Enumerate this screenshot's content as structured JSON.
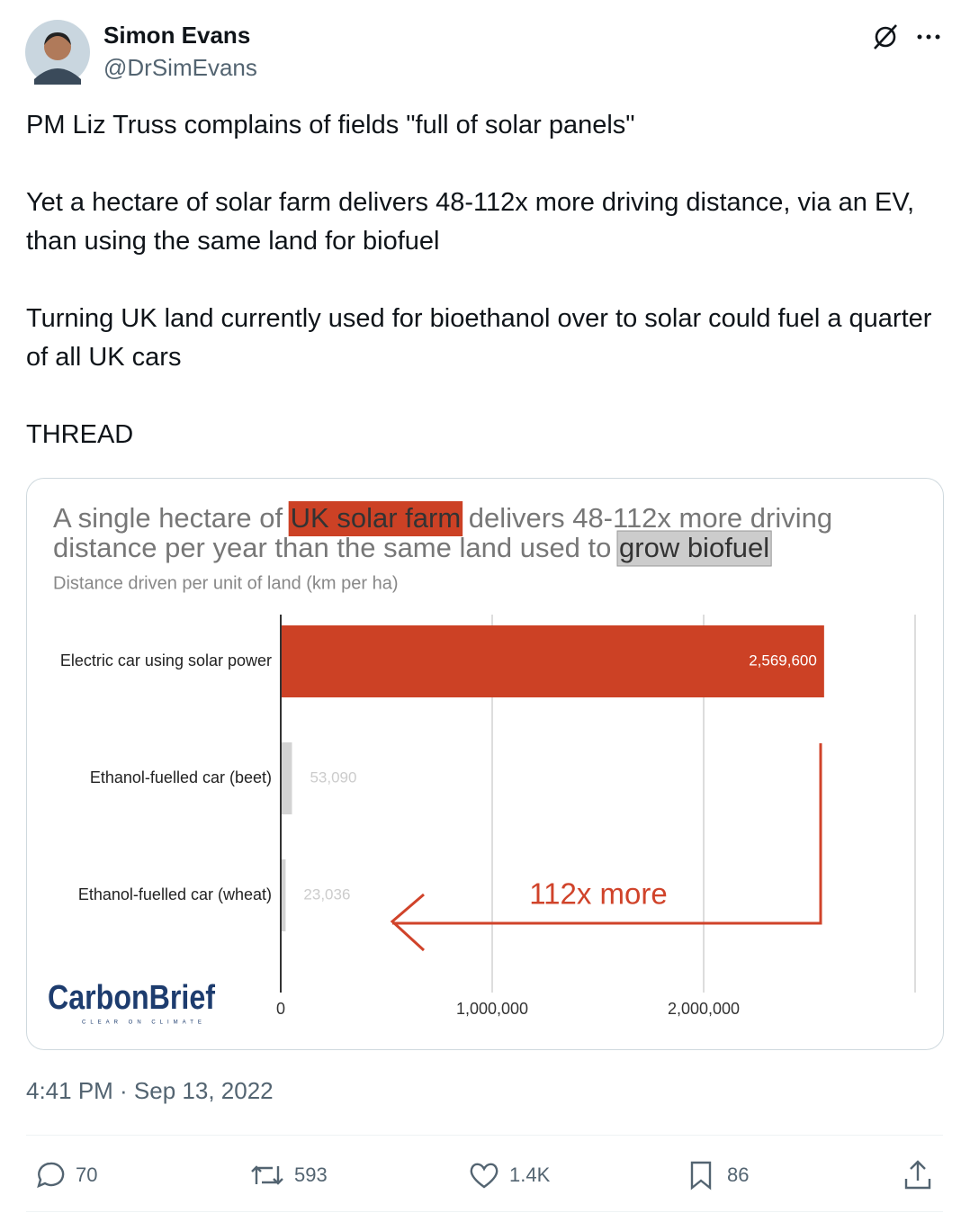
{
  "author": {
    "name": "Simon Evans",
    "handle": "@DrSimEvans"
  },
  "text": [
    "PM Liz Truss complains of fields \"full of solar panels\"",
    "Yet a hectare of solar farm delivers 48-112x more driving distance, via an EV, than using the same land for biofuel",
    "Turning UK land currently used for bioethanol over to solar could fuel a quarter of all UK cars",
    "THREAD"
  ],
  "chart_data": {
    "type": "bar",
    "orientation": "horizontal",
    "title": [
      [
        {
          "text": "A single hectare of "
        },
        {
          "text": "UK solar farm",
          "highlight": "#cc4125"
        },
        {
          "text": " delivers 48-112x more driving"
        }
      ],
      [
        {
          "text": "distance per year than the same land used to "
        },
        {
          "text": "grow biofuel",
          "highlight": "#cccccc"
        }
      ]
    ],
    "subtitle": "Distance driven per unit of land (km per ha)",
    "categories": [
      "Electric car using solar power",
      "Ethanol-fuelled car (beet)",
      "Ethanol-fuelled car (wheat)"
    ],
    "values": [
      2569600,
      53090,
      23036
    ],
    "value_labels": [
      "2,569,600",
      "53,090",
      "23,036"
    ],
    "colors": [
      "#cc4125",
      "#d3d3d3",
      "#d3d3d3"
    ],
    "xlim": [
      0,
      3000000
    ],
    "xticks": [
      0,
      {
        "value": 1000000,
        "label": "1,000,000"
      },
      {
        "value": 2000000,
        "label": "2,000,000"
      }
    ],
    "grid": true,
    "annotation": "112x more",
    "logo": "CarbonBrief",
    "logo_tagline": "CLEAR ON CLIMATE"
  },
  "timestamp": "4:41 PM · Sep 13, 2022",
  "stats": {
    "replies": "70",
    "retweets": "593",
    "likes": "1.4K",
    "bookmarks": "86"
  }
}
